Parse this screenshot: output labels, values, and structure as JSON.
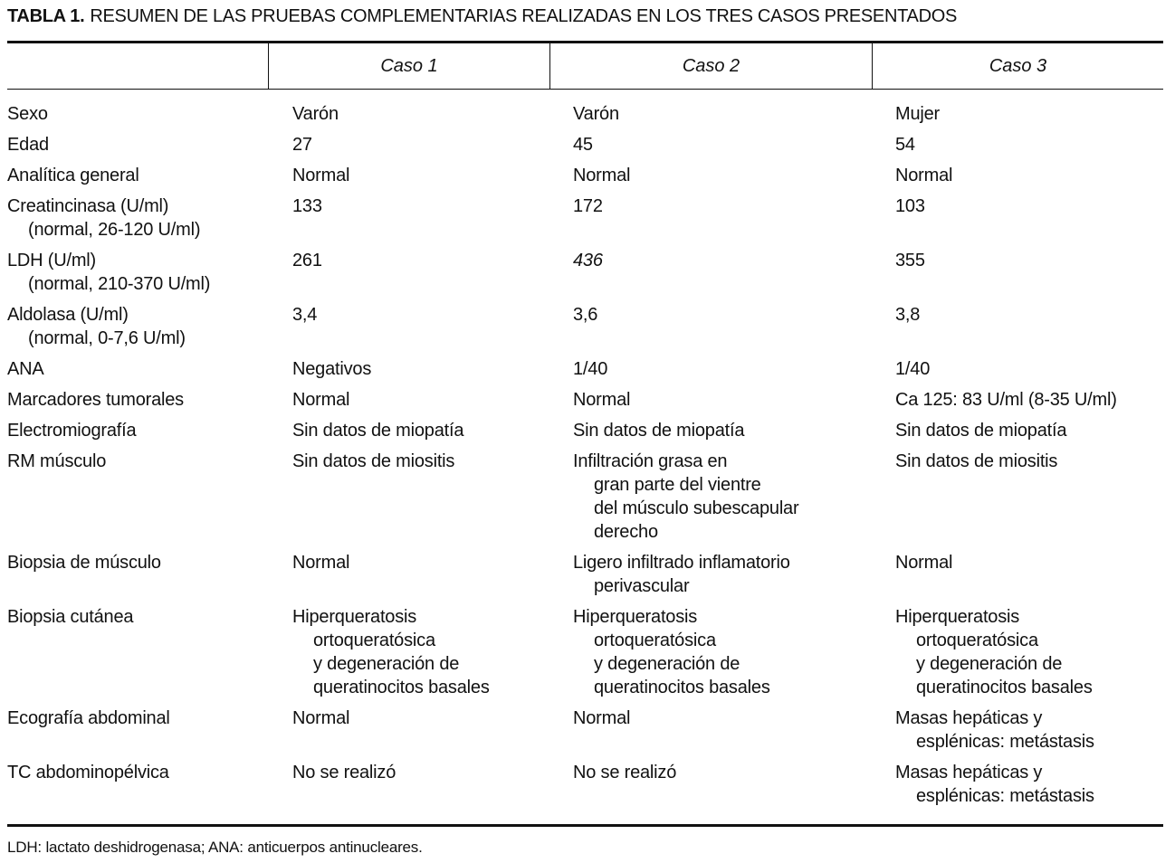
{
  "title": {
    "label": "TABLA 1.",
    "text": "RESUMEN DE LAS PRUEBAS COMPLEMENTARIAS REALIZADAS EN LOS TRES CASOS PRESENTADOS"
  },
  "columns": [
    "",
    "Caso 1",
    "Caso 2",
    "Caso 3"
  ],
  "rows": [
    {
      "label": [
        "Sexo"
      ],
      "cells": [
        [
          "Varón"
        ],
        [
          "Varón"
        ],
        [
          "Mujer"
        ]
      ]
    },
    {
      "label": [
        "Edad"
      ],
      "cells": [
        [
          "27"
        ],
        [
          "45"
        ],
        [
          "54"
        ]
      ]
    },
    {
      "label": [
        "Analítica general"
      ],
      "cells": [
        [
          "Normal"
        ],
        [
          "Normal"
        ],
        [
          "Normal"
        ]
      ]
    },
    {
      "label": [
        "Creatincinasa (U/ml)",
        "(normal, 26-120 U/ml)"
      ],
      "cells": [
        [
          "133"
        ],
        [
          "172"
        ],
        [
          "103"
        ]
      ]
    },
    {
      "label": [
        "LDH (U/ml)",
        "(normal, 210-370 U/ml)"
      ],
      "cells": [
        [
          "261"
        ],
        [
          "436"
        ],
        [
          "355"
        ]
      ],
      "italic_cells": [
        1
      ]
    },
    {
      "label": [
        "Aldolasa (U/ml)",
        "(normal, 0-7,6 U/ml)"
      ],
      "cells": [
        [
          "3,4"
        ],
        [
          "3,6"
        ],
        [
          "3,8"
        ]
      ]
    },
    {
      "label": [
        "ANA"
      ],
      "cells": [
        [
          "Negativos"
        ],
        [
          "1/40"
        ],
        [
          "1/40"
        ]
      ]
    },
    {
      "label": [
        "Marcadores tumorales"
      ],
      "cells": [
        [
          "Normal"
        ],
        [
          "Normal"
        ],
        [
          "Ca 125: 83 U/ml (8-35 U/ml)"
        ]
      ]
    },
    {
      "label": [
        "Electromiografía"
      ],
      "cells": [
        [
          "Sin datos de miopatía"
        ],
        [
          "Sin datos de miopatía"
        ],
        [
          "Sin datos de miopatía"
        ]
      ]
    },
    {
      "label": [
        "RM músculo"
      ],
      "cells": [
        [
          "Sin datos de miositis"
        ],
        [
          "Infiltración grasa en",
          "gran parte del vientre",
          "del músculo subescapular",
          "derecho"
        ],
        [
          "Sin datos de miositis"
        ]
      ]
    },
    {
      "label": [
        "Biopsia de músculo"
      ],
      "cells": [
        [
          "Normal"
        ],
        [
          "Ligero infiltrado inflamatorio",
          "perivascular"
        ],
        [
          "Normal"
        ]
      ]
    },
    {
      "label": [
        "Biopsia cutánea"
      ],
      "cells": [
        [
          "Hiperqueratosis",
          "ortoqueratósica",
          "y degeneración de",
          "queratinocitos basales"
        ],
        [
          "Hiperqueratosis",
          "ortoqueratósica",
          "y degeneración de",
          "queratinocitos basales"
        ],
        [
          "Hiperqueratosis",
          "ortoqueratósica",
          "y degeneración de",
          "queratinocitos basales"
        ]
      ]
    },
    {
      "label": [
        "Ecografía abdominal"
      ],
      "cells": [
        [
          "Normal"
        ],
        [
          "Normal"
        ],
        [
          "Masas hepáticas y",
          "esplénicas: metástasis"
        ]
      ]
    },
    {
      "label": [
        "TC abdominopélvica"
      ],
      "cells": [
        [
          "No se realizó"
        ],
        [
          "No se realizó"
        ],
        [
          "Masas hepáticas y",
          "esplénicas: metástasis"
        ]
      ]
    }
  ],
  "footnote": "LDH: lactato deshidrogenasa; ANA: anticuerpos antinucleares."
}
